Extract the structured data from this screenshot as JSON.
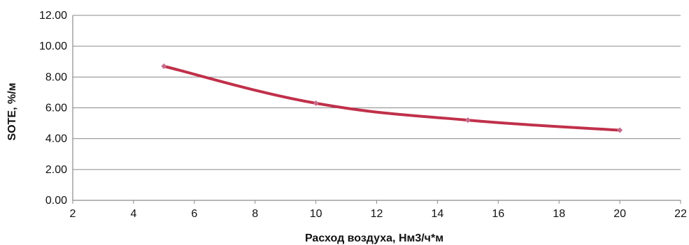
{
  "chart_data": {
    "type": "line",
    "title": "",
    "xlabel": "Расход воздуха, Нм3/ч*м",
    "ylabel": "SOTE, %/м",
    "xlim": [
      2,
      22
    ],
    "ylim": [
      0,
      12
    ],
    "x_ticks": [
      "2",
      "4",
      "6",
      "8",
      "10",
      "12",
      "14",
      "16",
      "18",
      "20",
      "22"
    ],
    "y_ticks": [
      "0.00",
      "2.00",
      "4.00",
      "6.00",
      "8.00",
      "10.00",
      "12.00"
    ],
    "grid": true,
    "series": [
      {
        "x": [
          5,
          10,
          15,
          20
        ],
        "y": [
          8.7,
          6.3,
          5.2,
          4.55
        ],
        "color": "#c0304a"
      }
    ],
    "marker_color": "#c86a8a"
  }
}
